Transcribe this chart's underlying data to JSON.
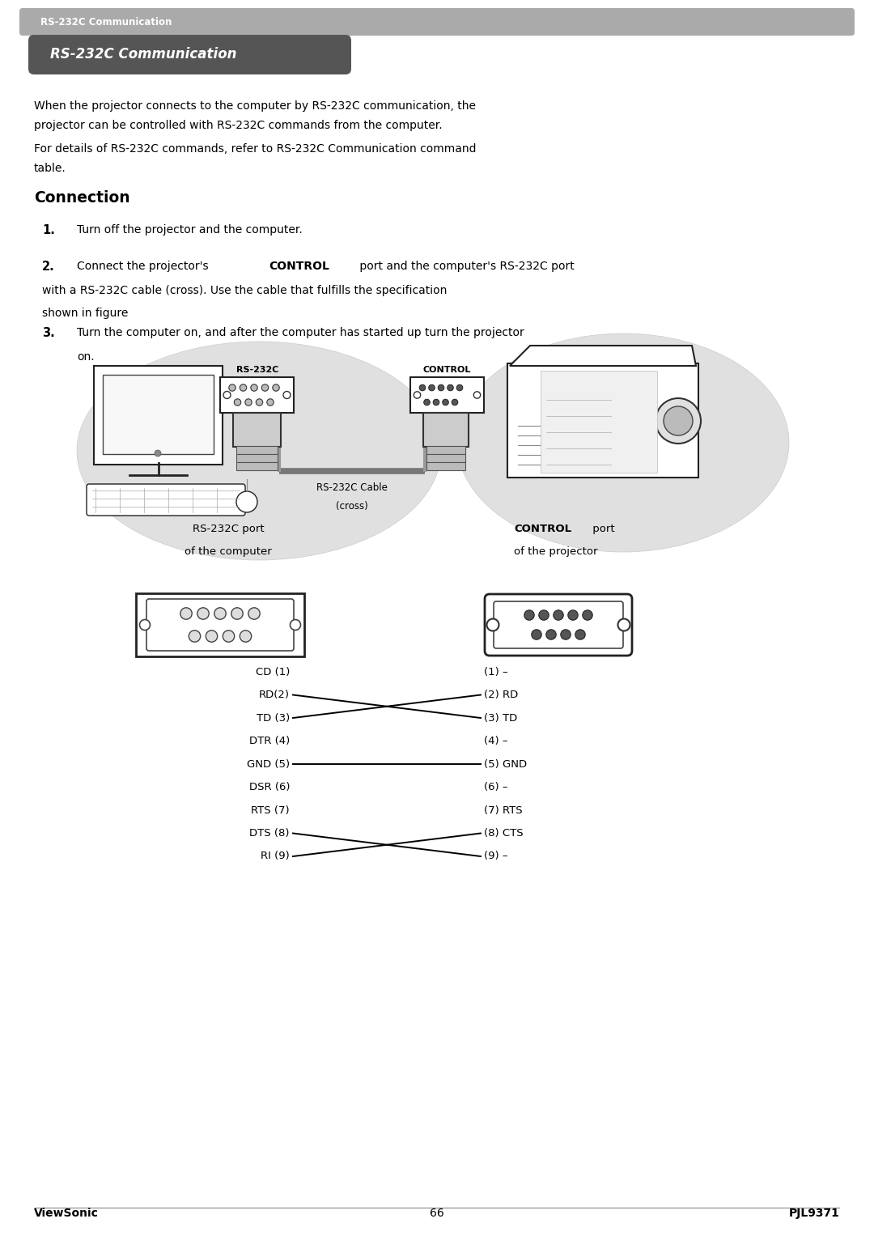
{
  "page_width": 10.8,
  "page_height": 15.32,
  "bg_color": "#ffffff",
  "header_bar_color": "#aaaaaa",
  "header_text": "RS-232C Communication",
  "header_text_color": "#ffffff",
  "title_box_color": "#555555",
  "title_text": "RS-232C Communication",
  "title_text_color": "#ffffff",
  "para1_line1": "When the projector connects to the computer by RS-232C communication, the",
  "para1_line2": "projector can be controlled with RS-232C commands from the computer.",
  "para2_line1": "For details of RS-232C commands, refer to RS-232C Communication command",
  "para2_line2": "table.",
  "section_title": "Connection",
  "step1": "Turn off the projector and the computer.",
  "step2_line1_pre": "Connect the projector's ",
  "step2_line1_bold": "CONTROL",
  "step2_line1_post": " port and the computer's RS-232C port",
  "step2_line2": "with a RS-232C cable (cross). Use the cable that fulfills the specification",
  "step2_line3": "shown in figure",
  "step3_line1": "Turn the computer on, and after the computer has started up turn the projector",
  "step3_line2": "on.",
  "cable_label_line1": "RS-232C Cable",
  "cable_label_line2": "(cross)",
  "rs232c_label": "RS-232C",
  "control_label": "CONTROL",
  "port_left_title1": "RS-232C port",
  "port_left_title2": "of the computer",
  "port_right_title1_bold": "CONTROL",
  "port_right_title1_rest": " port",
  "port_right_title2": "of the projector",
  "wiring_left": [
    "CD (1)",
    "RD(2)",
    "TD (3)",
    "DTR (4)",
    "GND (5)",
    "DSR (6)",
    "RTS (7)",
    "DTS (8)",
    "RI (9)"
  ],
  "wiring_right": [
    "(1) –",
    "(2) RD",
    "(3) TD",
    "(4) –",
    "(5) GND",
    "(6) –",
    "(7) RTS",
    "(8) CTS",
    "(9) –"
  ],
  "footer_left": "ViewSonic",
  "footer_center": "66",
  "footer_right": "PJL9371",
  "text_color": "#000000"
}
